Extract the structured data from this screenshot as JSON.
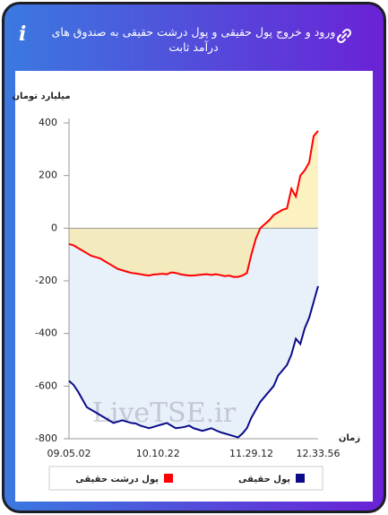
{
  "header": {
    "title": "ورود و خروج پول حقیقی و پول درشت حقیقی به صندوق های درآمد ثابت"
  },
  "chart_data": {
    "type": "line",
    "y_label": "میلیارد تومان",
    "x_label": "زمان",
    "watermark": "LiveTSE.ir",
    "categories": [
      "09.05.02",
      null,
      null,
      null,
      null,
      null,
      null,
      null,
      null,
      null,
      null,
      null,
      null,
      null,
      null,
      null,
      null,
      null,
      null,
      null,
      "10.10.22",
      null,
      null,
      null,
      null,
      null,
      null,
      null,
      null,
      null,
      null,
      null,
      null,
      null,
      null,
      null,
      null,
      null,
      null,
      null,
      null,
      "11.29.12",
      null,
      null,
      null,
      null,
      null,
      null,
      null,
      null,
      null,
      null,
      null,
      null,
      null,
      null,
      "12.33.56"
    ],
    "ylim": [
      -800,
      400
    ],
    "yticks": [
      400,
      200,
      0,
      -200,
      -400,
      -600,
      -800
    ],
    "series": [
      {
        "name": "پول حقیقی",
        "color": "#0b0b8a",
        "fill": "#e8f1fa",
        "values": [
          -580,
          -595,
          -620,
          -650,
          -680,
          -690,
          -700,
          -710,
          -720,
          -730,
          -740,
          -735,
          -730,
          -735,
          -740,
          -742,
          -750,
          -755,
          -760,
          -755,
          -750,
          -745,
          -740,
          -750,
          -760,
          -758,
          -755,
          -750,
          -760,
          -765,
          -770,
          -765,
          -760,
          -768,
          -775,
          -780,
          -785,
          -790,
          -795,
          -780,
          -760,
          -720,
          -690,
          -660,
          -640,
          -620,
          -600,
          -560,
          -540,
          -520,
          -480,
          -420,
          -440,
          -380,
          -340,
          -280,
          -220
        ]
      },
      {
        "name": "پول درشت حقیقی",
        "color": "#ff0000",
        "fill": "rgba(250,232,150,0.6)",
        "values": [
          -60,
          -65,
          -75,
          -85,
          -95,
          -105,
          -110,
          -115,
          -125,
          -135,
          -145,
          -155,
          -160,
          -165,
          -170,
          -172,
          -175,
          -178,
          -180,
          -176,
          -175,
          -173,
          -175,
          -168,
          -170,
          -175,
          -178,
          -180,
          -180,
          -178,
          -176,
          -175,
          -178,
          -175,
          -178,
          -182,
          -180,
          -185,
          -185,
          -180,
          -170,
          -100,
          -40,
          0,
          15,
          30,
          50,
          60,
          70,
          75,
          150,
          120,
          200,
          220,
          250,
          350,
          370
        ]
      }
    ]
  }
}
